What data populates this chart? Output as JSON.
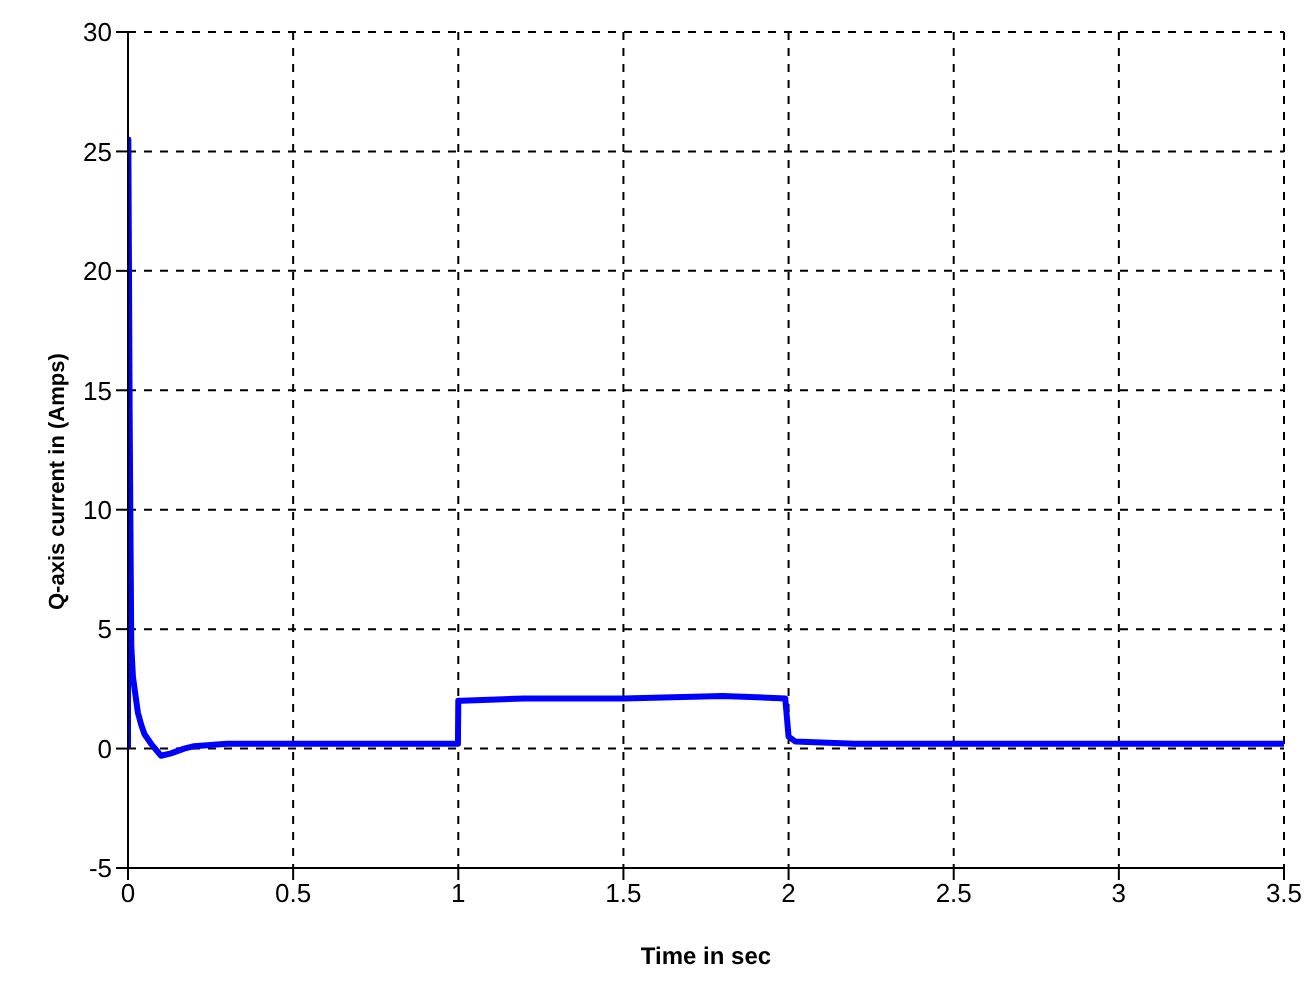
{
  "chart_data": {
    "type": "line",
    "xlabel": "Time in sec",
    "ylabel": "Q-axis current in (Amps)",
    "x": [
      0,
      0.001,
      0.003,
      0.005,
      0.008,
      0.01,
      0.015,
      0.02,
      0.03,
      0.04,
      0.05,
      0.07,
      0.1,
      0.13,
      0.17,
      0.2,
      0.3,
      0.5,
      0.7,
      0.999,
      1.0,
      1.01,
      1.2,
      1.5,
      1.8,
      1.99,
      2.0,
      2.02,
      2.2,
      2.5,
      3,
      3.5
    ],
    "series": [
      {
        "color": "#0000ff",
        "values": [
          0,
          25.5,
          20,
          14,
          8,
          4.3,
          3,
          2.5,
          1.5,
          1,
          0.6,
          0.2,
          -0.3,
          -0.2,
          0,
          0.1,
          0.2,
          0.2,
          0.2,
          0.2,
          2,
          2,
          2.1,
          2.1,
          2.2,
          2.1,
          0.5,
          0.3,
          0.2,
          0.2,
          0.2,
          0.2
        ]
      }
    ],
    "xlim": [
      0,
      3.5
    ],
    "xticks": [
      0,
      0.5,
      1,
      1.5,
      2,
      2.5,
      3,
      3.5
    ],
    "ylim": [
      -5,
      30
    ],
    "yticks": [
      -5,
      0,
      5,
      10,
      15,
      20,
      25,
      30
    ],
    "grid": true,
    "legend": false,
    "marker": "none",
    "line_style": "solid"
  }
}
